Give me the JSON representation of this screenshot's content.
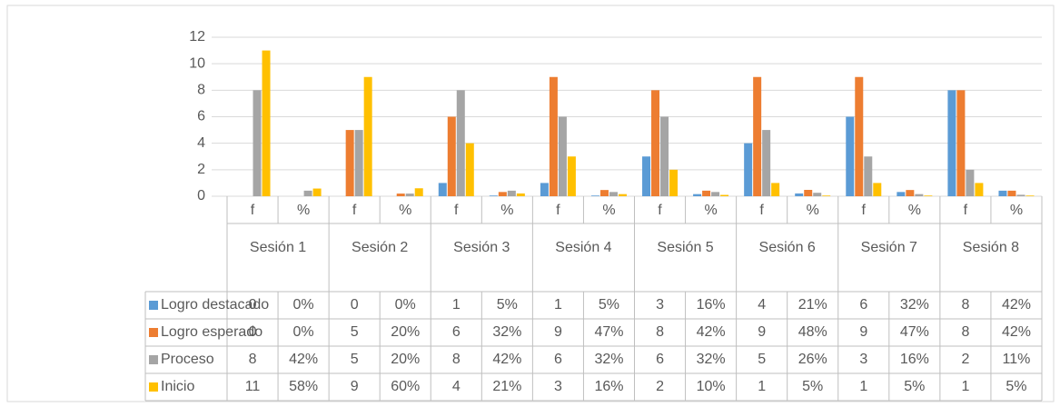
{
  "chart_data": {
    "type": "bar",
    "groups": [
      "Sesión 1",
      "Sesión 2",
      "Sesión 3",
      "Sesión 4",
      "Sesión 5",
      "Sesión 6",
      "Sesión 7",
      "Sesión 8"
    ],
    "categories": [
      "f",
      "%",
      "f",
      "%",
      "f",
      "%",
      "f",
      "%",
      "f",
      "%",
      "f",
      "%",
      "f",
      "%",
      "f",
      "%"
    ],
    "series": [
      {
        "name": "Logro destacado",
        "color": "#5b9bd5",
        "values": [
          0,
          0,
          0,
          0,
          1,
          0.05,
          1,
          0.05,
          3,
          0.16,
          4,
          0.21,
          6,
          0.32,
          8,
          0.42
        ],
        "value_labels": [
          "0",
          "0%",
          "0",
          "0%",
          "1",
          "5%",
          "1",
          "5%",
          "3",
          "16%",
          "4",
          "21%",
          "6",
          "32%",
          "8",
          "42%"
        ]
      },
      {
        "name": "Logro esperado",
        "color": "#ed7d31",
        "values": [
          0,
          0,
          5,
          0.2,
          6,
          0.32,
          9,
          0.47,
          8,
          0.42,
          9,
          0.48,
          9,
          0.47,
          8,
          0.42
        ],
        "value_labels": [
          "0",
          "0%",
          "5",
          "20%",
          "6",
          "32%",
          "9",
          "47%",
          "8",
          "42%",
          "9",
          "48%",
          "9",
          "47%",
          "8",
          "42%"
        ]
      },
      {
        "name": "Proceso",
        "color": "#a5a5a5",
        "values": [
          8,
          0.42,
          5,
          0.2,
          8,
          0.42,
          6,
          0.32,
          6,
          0.32,
          5,
          0.26,
          3,
          0.16,
          2,
          0.11
        ],
        "value_labels": [
          "8",
          "42%",
          "5",
          "20%",
          "8",
          "42%",
          "6",
          "32%",
          "6",
          "32%",
          "5",
          "26%",
          "3",
          "16%",
          "2",
          "11%"
        ]
      },
      {
        "name": "Inicio",
        "color": "#ffc000",
        "values": [
          11,
          0.58,
          9,
          0.6,
          4,
          0.21,
          3,
          0.16,
          2,
          0.1,
          1,
          0.05,
          1,
          0.05,
          1,
          0.05
        ],
        "value_labels": [
          "11",
          "58%",
          "9",
          "60%",
          "4",
          "21%",
          "3",
          "16%",
          "2",
          "10%",
          "1",
          "5%",
          "1",
          "5%",
          "1",
          "5%"
        ]
      }
    ],
    "ylim": [
      0,
      12
    ],
    "yticks": [
      0,
      2,
      4,
      6,
      8,
      10,
      12
    ],
    "grid": true,
    "legend": "table"
  }
}
